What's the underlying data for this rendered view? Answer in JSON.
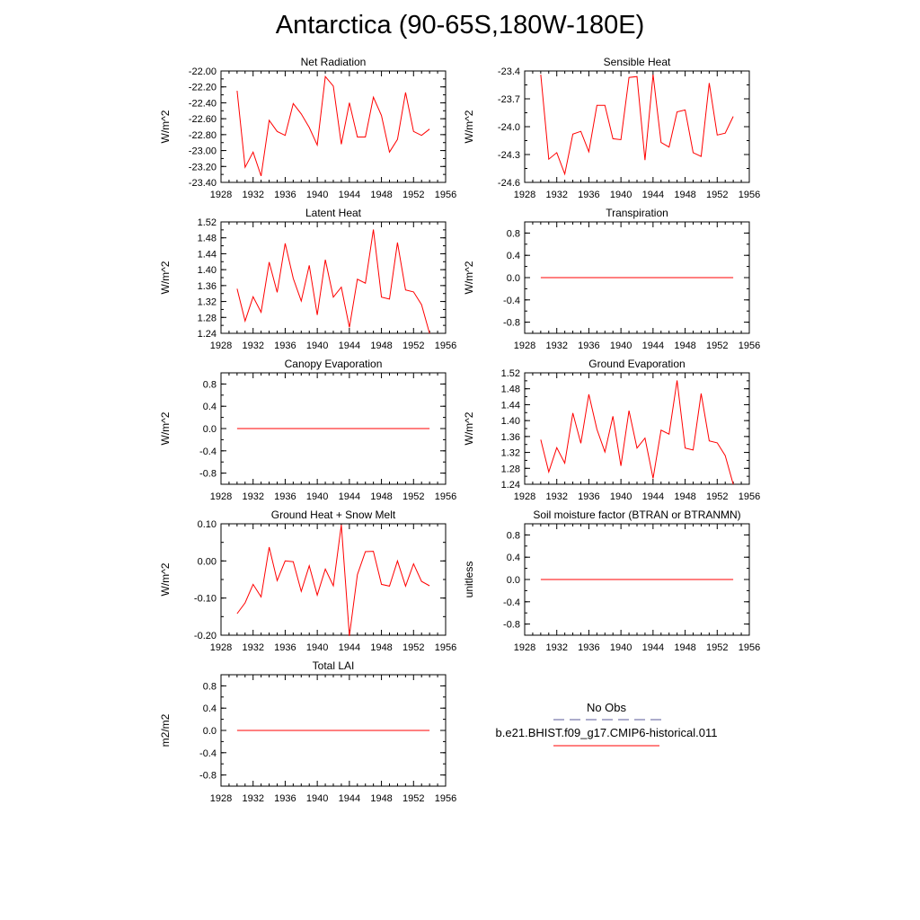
{
  "page_title": "Antarctica (90-65S,180W-180E)",
  "legend": {
    "obs_label": "No Obs",
    "obs_color": "#5a5a9a",
    "model_label": "b.e21.BHIST.f09_g17.CMIP6-historical.011",
    "model_color": "#ff0000"
  },
  "line_color": "#ff0000",
  "chart_data": [
    {
      "type": "line",
      "title": "Net Radiation",
      "ylabel": "W/m^2",
      "xlim": [
        1928,
        1956
      ],
      "ylim": [
        -23.4,
        -22.0
      ],
      "x_ticks": [
        1928,
        1932,
        1936,
        1940,
        1944,
        1948,
        1952,
        1956
      ],
      "y_ticks": [
        "-22.00",
        "-22.20",
        "-22.40",
        "-22.60",
        "-22.80",
        "-23.00",
        "-23.20",
        "-23.40"
      ],
      "x": [
        1930,
        1931,
        1932,
        1933,
        1934,
        1935,
        1936,
        1937,
        1938,
        1939,
        1940,
        1941,
        1942,
        1943,
        1944,
        1945,
        1946,
        1947,
        1948,
        1949,
        1950,
        1951,
        1952,
        1953,
        1954
      ],
      "values": [
        -22.25,
        -23.21,
        -23.02,
        -23.32,
        -22.62,
        -22.76,
        -22.81,
        -22.41,
        -22.54,
        -22.71,
        -22.93,
        -22.07,
        -22.19,
        -22.92,
        -22.4,
        -22.83,
        -22.83,
        -22.33,
        -22.56,
        -23.02,
        -22.86,
        -22.27,
        -22.76,
        -22.81,
        -22.73
      ]
    },
    {
      "type": "line",
      "title": "Sensible Heat",
      "ylabel": "W/m^2",
      "xlim": [
        1928,
        1956
      ],
      "ylim": [
        -24.6,
        -23.4
      ],
      "x_ticks": [
        1928,
        1932,
        1936,
        1940,
        1944,
        1948,
        1952,
        1956
      ],
      "y_ticks": [
        "-23.4",
        "-23.7",
        "-24.0",
        "-24.3",
        "-24.6"
      ],
      "x": [
        1930,
        1931,
        1932,
        1933,
        1934,
        1935,
        1936,
        1937,
        1938,
        1939,
        1940,
        1941,
        1942,
        1943,
        1944,
        1945,
        1946,
        1947,
        1948,
        1949,
        1950,
        1951,
        1952,
        1953,
        1954
      ],
      "values": [
        -23.44,
        -24.35,
        -24.28,
        -24.51,
        -24.08,
        -24.05,
        -24.27,
        -23.77,
        -23.77,
        -24.13,
        -24.14,
        -23.47,
        -23.46,
        -24.36,
        -23.44,
        -24.17,
        -24.22,
        -23.84,
        -23.82,
        -24.28,
        -24.32,
        -23.53,
        -24.09,
        -24.07,
        -23.89
      ]
    },
    {
      "type": "line",
      "title": "Latent Heat",
      "ylabel": "W/m^2",
      "xlim": [
        1928,
        1956
      ],
      "ylim": [
        1.24,
        1.52
      ],
      "x_ticks": [
        1928,
        1932,
        1936,
        1940,
        1944,
        1948,
        1952,
        1956
      ],
      "y_ticks": [
        "1.52",
        "1.48",
        "1.44",
        "1.40",
        "1.36",
        "1.32",
        "1.28",
        "1.24"
      ],
      "x": [
        1930,
        1931,
        1932,
        1933,
        1934,
        1935,
        1936,
        1937,
        1938,
        1939,
        1940,
        1941,
        1942,
        1943,
        1944,
        1945,
        1946,
        1947,
        1948,
        1949,
        1950,
        1951,
        1952,
        1953,
        1954
      ],
      "values": [
        1.352,
        1.271,
        1.332,
        1.293,
        1.419,
        1.343,
        1.466,
        1.378,
        1.321,
        1.411,
        1.286,
        1.425,
        1.331,
        1.356,
        1.255,
        1.376,
        1.366,
        1.501,
        1.331,
        1.326,
        1.468,
        1.349,
        1.344,
        1.312,
        1.24
      ]
    },
    {
      "type": "line",
      "title": "Transpiration",
      "ylabel": "W/m^2",
      "xlim": [
        1928,
        1956
      ],
      "ylim": [
        -1.0,
        1.0
      ],
      "x_ticks": [
        1928,
        1932,
        1936,
        1940,
        1944,
        1948,
        1952,
        1956
      ],
      "y_ticks": [
        "0.8",
        "0.4",
        "0.0",
        "-0.4",
        "-0.8"
      ],
      "x": [
        1930,
        1954
      ],
      "values": [
        0,
        0
      ]
    },
    {
      "type": "line",
      "title": "Canopy Evaporation",
      "ylabel": "W/m^2",
      "xlim": [
        1928,
        1956
      ],
      "ylim": [
        -1.0,
        1.0
      ],
      "x_ticks": [
        1928,
        1932,
        1936,
        1940,
        1944,
        1948,
        1952,
        1956
      ],
      "y_ticks": [
        "0.8",
        "0.4",
        "0.0",
        "-0.4",
        "-0.8"
      ],
      "x": [
        1930,
        1954
      ],
      "values": [
        0,
        0
      ]
    },
    {
      "type": "line",
      "title": "Ground Evaporation",
      "ylabel": "W/m^2",
      "xlim": [
        1928,
        1956
      ],
      "ylim": [
        1.24,
        1.52
      ],
      "x_ticks": [
        1928,
        1932,
        1936,
        1940,
        1944,
        1948,
        1952,
        1956
      ],
      "y_ticks": [
        "1.52",
        "1.48",
        "1.44",
        "1.40",
        "1.36",
        "1.32",
        "1.28",
        "1.24"
      ],
      "x": [
        1930,
        1931,
        1932,
        1933,
        1934,
        1935,
        1936,
        1937,
        1938,
        1939,
        1940,
        1941,
        1942,
        1943,
        1944,
        1945,
        1946,
        1947,
        1948,
        1949,
        1950,
        1951,
        1952,
        1953,
        1954
      ],
      "values": [
        1.352,
        1.271,
        1.332,
        1.293,
        1.419,
        1.343,
        1.466,
        1.378,
        1.321,
        1.411,
        1.286,
        1.425,
        1.331,
        1.356,
        1.255,
        1.376,
        1.366,
        1.501,
        1.331,
        1.326,
        1.468,
        1.349,
        1.344,
        1.312,
        1.24
      ]
    },
    {
      "type": "line",
      "title": "Ground Heat + Snow Melt",
      "ylabel": "W/m^2",
      "xlim": [
        1928,
        1956
      ],
      "ylim": [
        -0.2,
        0.1
      ],
      "x_ticks": [
        1928,
        1932,
        1936,
        1940,
        1944,
        1948,
        1952,
        1956
      ],
      "y_ticks": [
        "0.10",
        "0.00",
        "-0.10",
        "-0.20"
      ],
      "x": [
        1930,
        1931,
        1932,
        1933,
        1934,
        1935,
        1936,
        1937,
        1938,
        1939,
        1940,
        1941,
        1942,
        1943,
        1944,
        1945,
        1946,
        1947,
        1948,
        1949,
        1950,
        1951,
        1952,
        1953,
        1954
      ],
      "values": [
        -0.142,
        -0.113,
        -0.063,
        -0.097,
        0.037,
        -0.053,
        -0.0,
        -0.002,
        -0.082,
        -0.013,
        -0.092,
        -0.022,
        -0.067,
        0.097,
        -0.202,
        -0.037,
        0.025,
        0.026,
        -0.063,
        -0.068,
        0.0,
        -0.068,
        -0.008,
        -0.055,
        -0.067
      ]
    },
    {
      "type": "line",
      "title": "Soil moisture factor (BTRAN or BTRANMN)",
      "ylabel": "unitless",
      "xlim": [
        1928,
        1956
      ],
      "ylim": [
        -1.0,
        1.0
      ],
      "x_ticks": [
        1928,
        1932,
        1936,
        1940,
        1944,
        1948,
        1952,
        1956
      ],
      "y_ticks": [
        "0.8",
        "0.4",
        "0.0",
        "-0.4",
        "-0.8"
      ],
      "x": [
        1930,
        1954
      ],
      "values": [
        0,
        0
      ]
    },
    {
      "type": "line",
      "title": "Total LAI",
      "ylabel": "m2/m2",
      "xlim": [
        1928,
        1956
      ],
      "ylim": [
        -1.0,
        1.0
      ],
      "x_ticks": [
        1928,
        1932,
        1936,
        1940,
        1944,
        1948,
        1952,
        1956
      ],
      "y_ticks": [
        "0.8",
        "0.4",
        "0.0",
        "-0.4",
        "-0.8"
      ],
      "x": [
        1930,
        1954
      ],
      "values": [
        0,
        0
      ]
    }
  ]
}
